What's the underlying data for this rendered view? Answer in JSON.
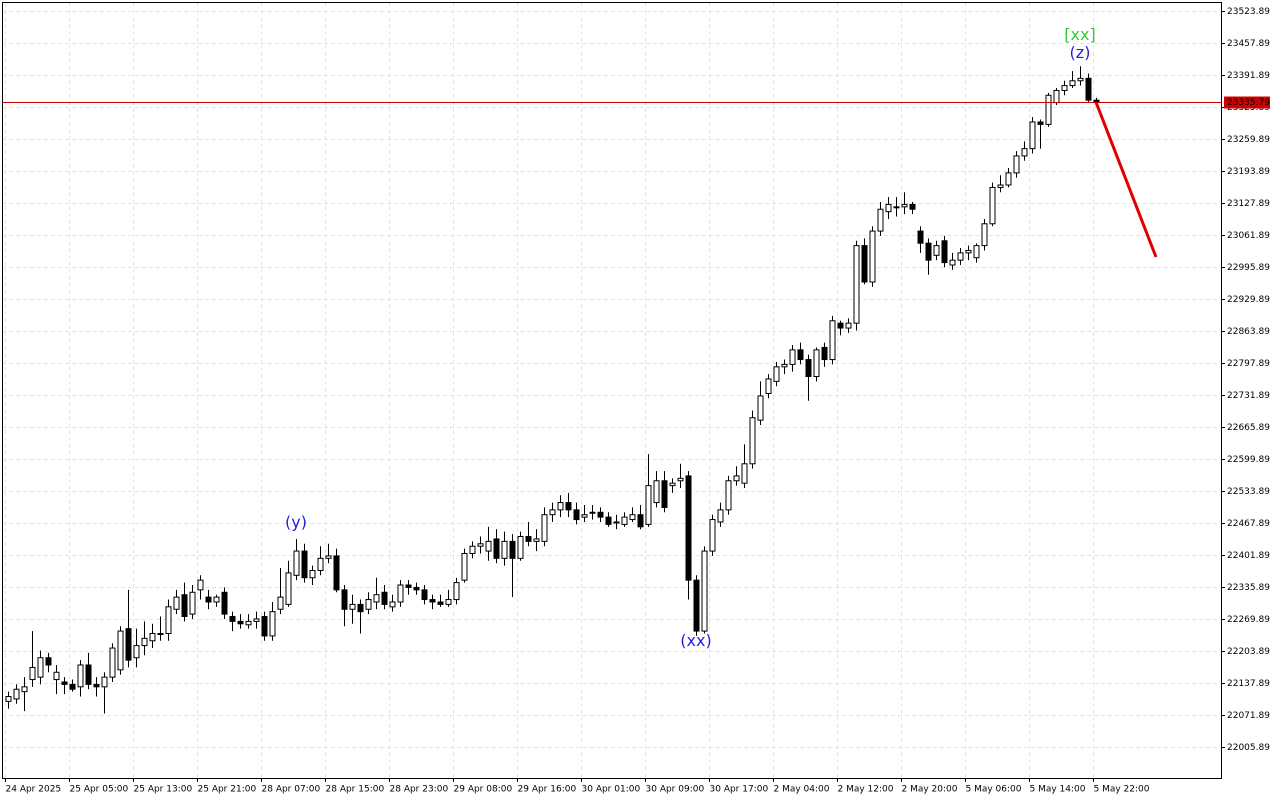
{
  "chart_data": {
    "type": "candlestick",
    "categories": [
      "24 Apr 2025",
      null,
      null,
      null,
      null,
      null,
      null,
      null,
      "25 Apr 05:00",
      null,
      null,
      null,
      null,
      null,
      null,
      null,
      "25 Apr 13:00",
      null,
      null,
      null,
      null,
      null,
      null,
      null,
      "25 Apr 21:00",
      null,
      null,
      null,
      null,
      null,
      null,
      null,
      "28 Apr 07:00",
      null,
      null,
      null,
      null,
      null,
      null,
      null,
      "28 Apr 15:00",
      null,
      null,
      null,
      null,
      null,
      null,
      null,
      "28 Apr 23:00",
      null,
      null,
      null,
      null,
      null,
      null,
      null,
      "29 Apr 08:00",
      null,
      null,
      null,
      null,
      null,
      null,
      null,
      "29 Apr 16:00",
      null,
      null,
      null,
      null,
      null,
      null,
      null,
      "30 Apr 01:00",
      null,
      null,
      null,
      null,
      null,
      null,
      null,
      "30 Apr 09:00",
      null,
      null,
      null,
      null,
      null,
      null,
      null,
      "30 Apr 17:00",
      null,
      null,
      null,
      null,
      null,
      null,
      null,
      "2 May 04:00",
      null,
      null,
      null,
      null,
      null,
      null,
      null,
      "2 May 12:00",
      null,
      null,
      null,
      null,
      null,
      null,
      null,
      "2 May 20:00",
      null,
      null,
      null,
      null,
      null,
      null,
      null,
      "5 May 06:00",
      null,
      null,
      null,
      null,
      null,
      null,
      null,
      "5 May 14:00",
      null,
      null,
      null,
      null,
      null,
      null,
      null,
      "5 May 22:00"
    ],
    "open": [
      22100,
      22105,
      22120,
      22145,
      22150,
      22190,
      22145,
      22140,
      22135,
      22130,
      22175,
      22135,
      22130,
      22150,
      22165,
      22250,
      22190,
      22215,
      22225,
      22240,
      22240,
      22290,
      22320,
      22280,
      22330,
      22315,
      22305,
      22325,
      22275,
      22265,
      22258,
      22265,
      22275,
      22235,
      22290,
      22300,
      22360,
      22410,
      22355,
      22370,
      22395,
      22400,
      22330,
      22290,
      22300,
      22290,
      22305,
      22325,
      22295,
      22305,
      22340,
      22335,
      22330,
      22310,
      22305,
      22300,
      22310,
      22350,
      22405,
      22420,
      22410,
      22435,
      22395,
      22430,
      22395,
      22440,
      22430,
      22430,
      22485,
      22495,
      22510,
      22495,
      22480,
      22490,
      22490,
      22480,
      22470,
      22465,
      22475,
      22485,
      22465,
      22510,
      22555,
      22545,
      22555,
      22565,
      22350,
      22245,
      22410,
      22470,
      22495,
      22555,
      22550,
      22590,
      22680,
      22735,
      22760,
      22790,
      22795,
      22825,
      22805,
      22770,
      22830,
      22805,
      22880,
      22870,
      22880,
      23040,
      22965,
      23070,
      23110,
      23120,
      23120,
      23125,
      23070,
      23045,
      23020,
      23050,
      23000,
      23010,
      23025,
      23015,
      23040,
      23085,
      23160,
      23165,
      23190,
      23225,
      23240,
      23295,
      23290,
      23335,
      23360,
      23370,
      23380,
      23385,
      23340
    ],
    "high": [
      22120,
      22135,
      22150,
      22245,
      22205,
      22200,
      22175,
      22150,
      22145,
      22185,
      22200,
      22150,
      22160,
      22220,
      22255,
      22330,
      22250,
      22265,
      22260,
      22275,
      22310,
      22330,
      22345,
      22340,
      22360,
      22330,
      22320,
      22335,
      22285,
      22280,
      22280,
      22285,
      22285,
      22305,
      22375,
      22390,
      22435,
      22425,
      22380,
      22420,
      22425,
      22415,
      22340,
      22320,
      22310,
      22325,
      22355,
      22340,
      22320,
      22350,
      22350,
      22345,
      22340,
      22320,
      22320,
      22330,
      22355,
      22415,
      22430,
      22440,
      22460,
      22455,
      22450,
      22445,
      22450,
      22470,
      22455,
      22500,
      22510,
      22525,
      22530,
      22510,
      22505,
      22505,
      22500,
      22490,
      22485,
      22490,
      22500,
      22505,
      22610,
      22575,
      22575,
      22560,
      22590,
      22575,
      22360,
      22420,
      22485,
      22510,
      22565,
      22585,
      22630,
      22700,
      22760,
      22775,
      22800,
      22805,
      22835,
      22840,
      22815,
      22830,
      22840,
      22895,
      22885,
      22890,
      23050,
      23055,
      23080,
      23130,
      23140,
      23140,
      23150,
      23130,
      23080,
      23055,
      23050,
      23060,
      23025,
      23035,
      23040,
      23045,
      23095,
      23170,
      23185,
      23200,
      23235,
      23255,
      23305,
      23300,
      23355,
      23365,
      23380,
      23400,
      23410,
      23395,
      23345
    ],
    "low": [
      22085,
      22095,
      22080,
      22130,
      22135,
      22160,
      22115,
      22115,
      22120,
      22110,
      22125,
      22110,
      22075,
      22140,
      22155,
      22170,
      22170,
      22195,
      22210,
      22225,
      22225,
      22280,
      22265,
      22270,
      22310,
      22290,
      22295,
      22270,
      22245,
      22250,
      22250,
      22250,
      22225,
      22225,
      22280,
      22295,
      22350,
      22345,
      22340,
      22360,
      22385,
      22325,
      22255,
      22260,
      22240,
      22280,
      22290,
      22290,
      22285,
      22295,
      22320,
      22320,
      22300,
      22290,
      22295,
      22295,
      22300,
      22345,
      22395,
      22405,
      22390,
      22385,
      22380,
      22315,
      22390,
      22420,
      22410,
      22420,
      22470,
      22480,
      22480,
      22465,
      22470,
      22475,
      22470,
      22460,
      22455,
      22460,
      22470,
      22455,
      22460,
      22500,
      22490,
      22530,
      22540,
      22310,
      22235,
      22240,
      22400,
      22460,
      22485,
      22545,
      22540,
      22580,
      22670,
      22725,
      22750,
      22775,
      22780,
      22795,
      22720,
      22760,
      22790,
      22795,
      22855,
      22860,
      22865,
      22960,
      22955,
      23060,
      23095,
      23100,
      23105,
      23105,
      23025,
      22980,
      23010,
      22995,
      22990,
      23000,
      23010,
      23005,
      23030,
      23080,
      23150,
      23160,
      23180,
      23215,
      23230,
      23240,
      23285,
      23330,
      23350,
      23365,
      23370,
      23335,
      23330
    ],
    "close": [
      22110,
      22125,
      22130,
      22170,
      22190,
      22175,
      22160,
      22135,
      22125,
      22175,
      22135,
      22130,
      22150,
      22210,
      22245,
      22185,
      22215,
      22230,
      22240,
      22240,
      22295,
      22315,
      22275,
      22325,
      22350,
      22305,
      22315,
      22280,
      22265,
      22260,
      22265,
      22270,
      22235,
      22285,
      22315,
      22365,
      22410,
      22355,
      22370,
      22395,
      22400,
      22330,
      22290,
      22300,
      22285,
      22310,
      22320,
      22300,
      22305,
      22340,
      22335,
      22330,
      22310,
      22305,
      22300,
      22310,
      22345,
      22405,
      22420,
      22425,
      22430,
      22395,
      22430,
      22395,
      22440,
      22430,
      22435,
      22485,
      22495,
      22510,
      22495,
      22475,
      22485,
      22490,
      22480,
      22465,
      22470,
      22480,
      22485,
      22460,
      22545,
      22555,
      22500,
      22550,
      22560,
      22350,
      22245,
      22410,
      22475,
      22495,
      22555,
      22565,
      22590,
      22685,
      22730,
      22765,
      22790,
      22795,
      22825,
      22805,
      22770,
      22825,
      22805,
      22885,
      22870,
      22880,
      23040,
      22965,
      23070,
      23115,
      23125,
      23120,
      23125,
      23115,
      23045,
      23010,
      23040,
      23005,
      23010,
      23025,
      23030,
      23040,
      23085,
      23160,
      23165,
      23190,
      23225,
      23240,
      23295,
      23290,
      23350,
      23360,
      23370,
      23380,
      23385,
      23340,
      23335.79
    ],
    "up_color": "#ffffff",
    "down_color": "#000000",
    "ylim": [
      21941.95,
      23540.39
    ],
    "yticks": [
      22005.89,
      22071.89,
      22137.89,
      22203.89,
      22269.89,
      22335.89,
      22401.89,
      22467.89,
      22533.89,
      22599.89,
      22665.89,
      22731.89,
      22797.89,
      22863.89,
      22929.89,
      22995.89,
      23061.89,
      23127.89,
      23193.89,
      23259.89,
      23325.89,
      23391.89,
      23457.89,
      23523.89
    ],
    "grid": true,
    "current_price": 23335.79,
    "current_price_color": "#d00000",
    "annotations": [
      {
        "text": "(y)",
        "x": 36,
        "value": 22459,
        "color": "#2222dd"
      },
      {
        "text": "(xx)",
        "x": 86,
        "value": 22214,
        "color": "#2222dd"
      },
      {
        "text": "(z)",
        "x": 134,
        "value": 23427,
        "color": "#2222dd"
      },
      {
        "text": "[xx]",
        "x": 134,
        "value": 23464,
        "color": "#33cc33"
      }
    ],
    "forecast": {
      "color": "#e00000",
      "x": [
        136,
        143.5
      ],
      "values": [
        23335.79,
        23016.5
      ]
    }
  }
}
